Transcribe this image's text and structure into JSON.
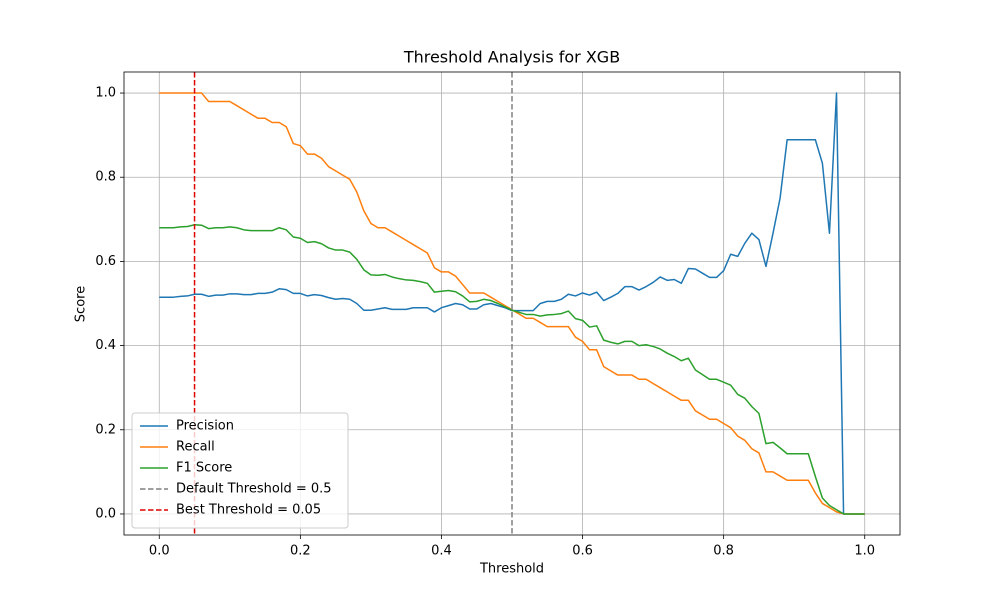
{
  "chart_data": {
    "type": "line",
    "title": "Threshold Analysis for XGB",
    "x_label": "Threshold",
    "y_label": "Score",
    "x": [
      0,
      0.01,
      0.02,
      0.03,
      0.04,
      0.05,
      0.06,
      0.07,
      0.08,
      0.09,
      0.1,
      0.11,
      0.12,
      0.13,
      0.14,
      0.15,
      0.16,
      0.17,
      0.18,
      0.19,
      0.2,
      0.21,
      0.22,
      0.23,
      0.24,
      0.25,
      0.26,
      0.27,
      0.28,
      0.29,
      0.3,
      0.31,
      0.32,
      0.33,
      0.34,
      0.35,
      0.36,
      0.37,
      0.38,
      0.39,
      0.4,
      0.41,
      0.42,
      0.43,
      0.44,
      0.45,
      0.46,
      0.47,
      0.48,
      0.49,
      0.5,
      0.51,
      0.52,
      0.53,
      0.54,
      0.55,
      0.56,
      0.57,
      0.58,
      0.59,
      0.6,
      0.61,
      0.62,
      0.63,
      0.64,
      0.65,
      0.66,
      0.67,
      0.68,
      0.69,
      0.7,
      0.71,
      0.72,
      0.73,
      0.74,
      0.75,
      0.76,
      0.77,
      0.78,
      0.79,
      0.8,
      0.81,
      0.82,
      0.83,
      0.84,
      0.85,
      0.86,
      0.87,
      0.88,
      0.89,
      0.9,
      0.91,
      0.92,
      0.93,
      0.94,
      0.95,
      0.96,
      0.97,
      0.98,
      0.99,
      1
    ],
    "series": [
      {
        "name": "Precision",
        "color": "#1f77b4",
        "values": [
          0.515,
          0.515,
          0.515,
          0.517,
          0.518,
          0.522,
          0.522,
          0.517,
          0.52,
          0.52,
          0.523,
          0.523,
          0.521,
          0.521,
          0.524,
          0.524,
          0.527,
          0.535,
          0.533,
          0.524,
          0.524,
          0.518,
          0.521,
          0.519,
          0.514,
          0.51,
          0.512,
          0.51,
          0.5,
          0.484,
          0.484,
          0.487,
          0.49,
          0.486,
          0.486,
          0.486,
          0.49,
          0.49,
          0.49,
          0.48,
          0.49,
          0.495,
          0.5,
          0.497,
          0.487,
          0.487,
          0.497,
          0.5,
          0.495,
          0.49,
          0.483,
          0.483,
          0.483,
          0.483,
          0.5,
          0.505,
          0.505,
          0.51,
          0.522,
          0.518,
          0.525,
          0.52,
          0.527,
          0.507,
          0.515,
          0.524,
          0.54,
          0.54,
          0.532,
          0.54,
          0.55,
          0.563,
          0.555,
          0.557,
          0.548,
          0.583,
          0.582,
          0.572,
          0.562,
          0.562,
          0.578,
          0.617,
          0.612,
          0.643,
          0.667,
          0.652,
          0.588,
          0.667,
          0.75,
          0.889,
          0.889,
          0.889,
          0.889,
          0.889,
          0.833,
          0.667,
          1.0,
          0,
          0,
          0,
          0
        ]
      },
      {
        "name": "Recall",
        "color": "#ff7f0e",
        "values": [
          1,
          1,
          1,
          1,
          1,
          1,
          1,
          0.98,
          0.98,
          0.98,
          0.98,
          0.97,
          0.96,
          0.95,
          0.94,
          0.94,
          0.93,
          0.93,
          0.92,
          0.88,
          0.875,
          0.855,
          0.855,
          0.845,
          0.825,
          0.815,
          0.805,
          0.795,
          0.765,
          0.72,
          0.69,
          0.68,
          0.68,
          0.67,
          0.66,
          0.65,
          0.64,
          0.63,
          0.62,
          0.585,
          0.575,
          0.575,
          0.565,
          0.545,
          0.525,
          0.525,
          0.525,
          0.515,
          0.505,
          0.495,
          0.485,
          0.475,
          0.465,
          0.465,
          0.455,
          0.445,
          0.445,
          0.445,
          0.445,
          0.42,
          0.41,
          0.39,
          0.39,
          0.35,
          0.34,
          0.33,
          0.33,
          0.33,
          0.32,
          0.32,
          0.31,
          0.3,
          0.29,
          0.28,
          0.27,
          0.27,
          0.245,
          0.235,
          0.225,
          0.225,
          0.215,
          0.205,
          0.185,
          0.175,
          0.155,
          0.145,
          0.1,
          0.1,
          0.09,
          0.08,
          0.08,
          0.08,
          0.08,
          0.05,
          0.025,
          0.015,
          0.005,
          0,
          0,
          0,
          0
        ]
      },
      {
        "name": "F1 Score",
        "color": "#2ca02c",
        "values": [
          0.68,
          0.68,
          0.68,
          0.682,
          0.683,
          0.687,
          0.686,
          0.678,
          0.68,
          0.68,
          0.682,
          0.68,
          0.675,
          0.673,
          0.673,
          0.673,
          0.673,
          0.68,
          0.675,
          0.658,
          0.655,
          0.645,
          0.647,
          0.642,
          0.632,
          0.627,
          0.627,
          0.622,
          0.605,
          0.58,
          0.568,
          0.567,
          0.569,
          0.563,
          0.559,
          0.556,
          0.555,
          0.552,
          0.548,
          0.527,
          0.529,
          0.531,
          0.528,
          0.518,
          0.504,
          0.505,
          0.51,
          0.507,
          0.5,
          0.492,
          0.484,
          0.479,
          0.474,
          0.474,
          0.47,
          0.473,
          0.474,
          0.476,
          0.482,
          0.464,
          0.46,
          0.444,
          0.447,
          0.413,
          0.408,
          0.404,
          0.41,
          0.41,
          0.4,
          0.402,
          0.398,
          0.392,
          0.382,
          0.374,
          0.364,
          0.37,
          0.342,
          0.331,
          0.32,
          0.32,
          0.313,
          0.306,
          0.284,
          0.275,
          0.255,
          0.239,
          0.167,
          0.17,
          0.157,
          0.143,
          0.143,
          0.143,
          0.143,
          0.089,
          0.038,
          0.02,
          0.01,
          0,
          0,
          0,
          0
        ]
      }
    ],
    "vlines": [
      {
        "name": "Default Threshold = 0.5",
        "value": 0.5,
        "color": "#808080"
      },
      {
        "name": "Best Threshold = 0.05",
        "value": 0.05,
        "color": "#dd0000"
      }
    ],
    "xlim": [
      -0.05,
      1.05
    ],
    "ylim": [
      -0.05,
      1.05
    ],
    "xticks": [
      {
        "value": 0,
        "label": "0.0"
      },
      0.2,
      0.4,
      0.6,
      0.8,
      {
        "value": 1,
        "label": "1.0"
      }
    ],
    "yticks": [
      {
        "value": 0,
        "label": "0.0"
      },
      0.2,
      0.4,
      0.6,
      0.8,
      {
        "value": 1,
        "label": "1.0"
      }
    ],
    "grid": true,
    "legend_position": "lower left"
  }
}
